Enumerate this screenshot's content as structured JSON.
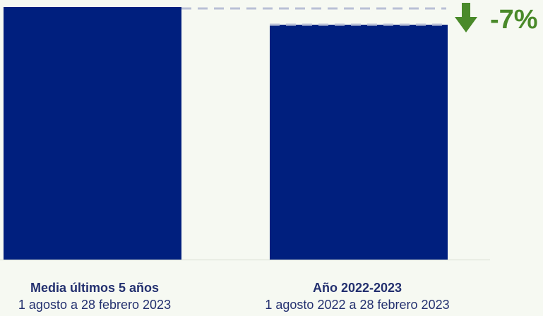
{
  "chart_data": {
    "type": "bar",
    "categories": [
      "Media últimos 5 años",
      "Año 2022-2023"
    ],
    "periods": [
      "1 agosto a 28 febrero 2023",
      "1 agosto 2022 a 28 febrero 2023"
    ],
    "values": [
      100,
      93
    ],
    "ylim": [
      0,
      100
    ],
    "title": "",
    "xlabel": "",
    "ylabel": "",
    "grid": false,
    "annotation": {
      "text": "-7%",
      "icon": "arrow-down-icon"
    },
    "colors": {
      "bar": "#001f7e",
      "annotation": "#4a8a2a",
      "reference_line": "#b9c0d6",
      "baseline": "#d8dcd0"
    }
  }
}
